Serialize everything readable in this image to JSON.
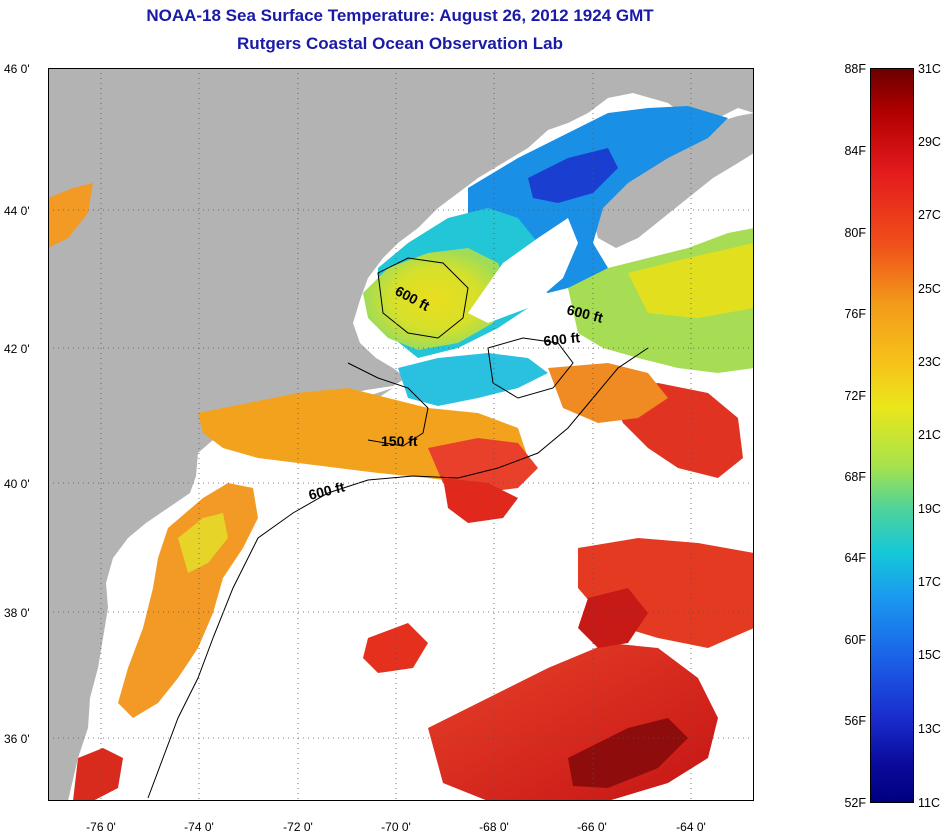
{
  "title": {
    "line1": "NOAA-18 Sea Surface Temperature:  August 26, 2012 1924 GMT",
    "line2": "Rutgers Coastal Ocean Observation Lab"
  },
  "map": {
    "lat_ticks": [
      "46 0'",
      "44 0'",
      "42 0'",
      "40 0'",
      "38 0'",
      "36 0'"
    ],
    "lon_ticks": [
      "-76 0'",
      "-74 0'",
      "-72 0'",
      "-70 0'",
      "-68 0'",
      "-66 0'",
      "-64 0'"
    ],
    "contour_labels": [
      "600 ft",
      "600 ft",
      "600 ft",
      "150 ft",
      "600 ft"
    ],
    "colors": {
      "land": "#b3b3b3",
      "cloud": "#ffffff",
      "gridline": "#555555"
    }
  },
  "colorbar": {
    "fahrenheit": [
      "88F",
      "84F",
      "80F",
      "76F",
      "72F",
      "68F",
      "64F",
      "60F",
      "56F",
      "52F"
    ],
    "celsius": [
      "31C",
      "29C",
      "27C",
      "25C",
      "23C",
      "21C",
      "19C",
      "17C",
      "15C",
      "13C",
      "11C"
    ],
    "colors": {
      "max": "#6b0000",
      "warm": "#e31a1c",
      "mid": "#eae61a",
      "cool": "#15c8d8",
      "min": "#000080"
    }
  }
}
